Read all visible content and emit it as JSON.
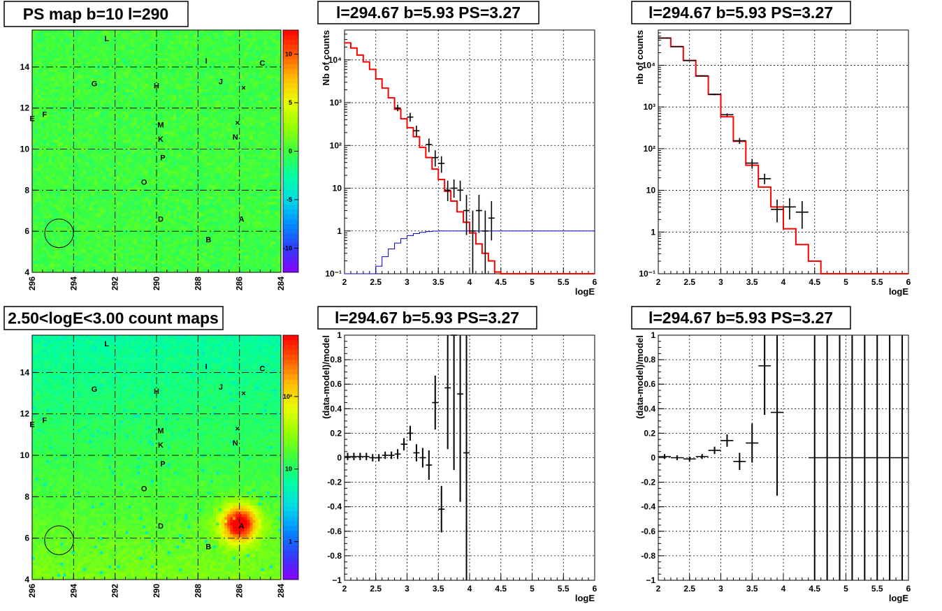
{
  "chart_data": [
    {
      "type": "heatmap",
      "title": "PS map b=10 l=290",
      "x_ticks": [
        "296",
        "294",
        "292",
        "290",
        "288",
        "286",
        "284"
      ],
      "y_ticks": [
        "4",
        "6",
        "8",
        "10",
        "12",
        "14"
      ],
      "x_range": [
        296,
        284
      ],
      "y_range": [
        4,
        15.8
      ],
      "colorbar_ticks": [
        "10",
        "5",
        "0",
        "-5",
        "-10"
      ],
      "colorbar_range": [
        -12.5,
        12.5
      ],
      "background_level": 0,
      "region_circle": {
        "l": 294.7,
        "b": 5.9,
        "r": 0.45
      },
      "sources": [
        {
          "label": "L",
          "l": 292.4,
          "b": 15.4
        },
        {
          "label": "I",
          "l": 287.6,
          "b": 14.3
        },
        {
          "label": "C",
          "l": 284.9,
          "b": 14.2
        },
        {
          "label": "G",
          "l": 293.0,
          "b": 13.2
        },
        {
          "label": "H",
          "l": 290.0,
          "b": 13.1
        },
        {
          "label": "J",
          "l": 286.9,
          "b": 13.3
        },
        {
          "label": "×",
          "l": 285.8,
          "b": 13.0
        },
        {
          "label": "E",
          "l": 296.0,
          "b": 11.5
        },
        {
          "label": "F",
          "l": 295.4,
          "b": 11.7
        },
        {
          "label": "M",
          "l": 289.8,
          "b": 11.2
        },
        {
          "label": "×",
          "l": 286.1,
          "b": 11.3
        },
        {
          "label": "K",
          "l": 289.8,
          "b": 10.5
        },
        {
          "label": "N",
          "l": 286.2,
          "b": 10.6
        },
        {
          "label": "P",
          "l": 289.7,
          "b": 9.6
        },
        {
          "label": "O",
          "l": 290.6,
          "b": 8.4
        },
        {
          "label": "D",
          "l": 289.8,
          "b": 6.6
        },
        {
          "label": "A",
          "l": 285.9,
          "b": 6.6
        },
        {
          "label": "B",
          "l": 287.5,
          "b": 5.6
        }
      ]
    },
    {
      "type": "line",
      "title": "l=294.67 b=5.93 PS=3.27",
      "xlabel": "logE",
      "ylabel": "Nb of counts",
      "xlim": [
        2,
        6
      ],
      "ylim": [
        0.1,
        50000
      ],
      "yscale": "log",
      "x_ticks": [
        "2",
        "2.5",
        "3",
        "3.5",
        "4",
        "4.5",
        "5",
        "5.5",
        "6"
      ],
      "y_ticks": [
        "10⁻¹",
        "1",
        "10",
        "10²",
        "10³",
        "10⁴"
      ],
      "bin_width": 0.1,
      "series": [
        {
          "style": "model-red",
          "bins_x": [
            2.0,
            2.1,
            2.2,
            2.3,
            2.4,
            2.5,
            2.6,
            2.7,
            2.8,
            2.9,
            3.0,
            3.1,
            3.2,
            3.3,
            3.4,
            3.5,
            3.6,
            3.7,
            3.8,
            3.9,
            4.0,
            4.1,
            4.2,
            4.3,
            4.4,
            4.5,
            4.6,
            4.7,
            4.8,
            4.9,
            5.0,
            5.1,
            5.2,
            5.3,
            5.4,
            5.5,
            5.6,
            5.7,
            5.8,
            5.9
          ],
          "values": [
            25000,
            19000,
            13000,
            9000,
            6000,
            3600,
            2200,
            1300,
            700,
            420,
            260,
            160,
            90,
            52,
            28,
            16,
            8.5,
            5,
            2.8,
            1.6,
            0.9,
            0.5,
            0.3,
            0.2,
            0.11,
            0.1,
            0.1,
            0.1,
            0.1,
            0.1,
            0.1,
            0.1,
            0.1,
            0.1,
            0.1,
            0.1,
            0.1,
            0.1,
            0.1,
            0.1
          ]
        },
        {
          "style": "efficiency-blue",
          "bins_x": [
            2.0,
            2.1,
            2.2,
            2.3,
            2.4,
            2.5,
            2.6,
            2.7,
            2.8,
            2.9,
            3.0,
            3.1,
            3.2,
            3.3,
            3.4,
            3.5,
            3.6,
            3.7,
            3.8,
            3.9,
            4.0,
            4.1,
            4.2,
            4.3,
            4.4,
            4.5,
            4.6,
            4.7,
            4.8,
            4.9,
            5.0,
            5.1,
            5.2,
            5.3,
            5.4,
            5.5,
            5.6,
            5.7,
            5.8,
            5.9
          ],
          "values": [
            0.1,
            0.1,
            0.1,
            0.1,
            0.1,
            0.15,
            0.25,
            0.38,
            0.52,
            0.66,
            0.78,
            0.87,
            0.93,
            0.97,
            0.99,
            1,
            1,
            1,
            1,
            1,
            1,
            1,
            1,
            1,
            1,
            1,
            1,
            1,
            1,
            1,
            1,
            1,
            1,
            1,
            1,
            1,
            1,
            1,
            1,
            1
          ]
        },
        {
          "style": "data-points",
          "x": [
            2.85,
            3.05,
            3.15,
            3.35,
            3.45,
            3.55,
            3.65,
            3.75,
            3.85,
            3.95,
            4.05,
            4.15,
            4.25,
            4.35
          ],
          "y": [
            750,
            460,
            220,
            105,
            52,
            38,
            9,
            10,
            9,
            3,
            1,
            3,
            1,
            2
          ],
          "err_lo": [
            120,
            100,
            60,
            35,
            20,
            15,
            4,
            4,
            4,
            2.2,
            0.9,
            2.1,
            0.9,
            1.4
          ],
          "err_hi": [
            150,
            120,
            70,
            40,
            25,
            18,
            6,
            6,
            6,
            4,
            2,
            4,
            2,
            3
          ]
        }
      ]
    },
    {
      "type": "line",
      "title": "l=294.67 b=5.93 PS=3.27",
      "xlabel": "logE",
      "ylabel": "nb of counts",
      "xlim": [
        2,
        6
      ],
      "ylim": [
        0.1,
        70000
      ],
      "yscale": "log",
      "x_ticks": [
        "2",
        "2.5",
        "3",
        "3.5",
        "4",
        "4.5",
        "5",
        "5.5",
        "6"
      ],
      "y_ticks": [
        "10⁻¹",
        "1",
        "10",
        "10²",
        "10³",
        "10⁴"
      ],
      "bin_width": 0.2,
      "series": [
        {
          "style": "model-red",
          "bins_x": [
            2.0,
            2.2,
            2.4,
            2.6,
            2.8,
            3.0,
            3.2,
            3.4,
            3.6,
            3.8,
            4.0,
            4.2,
            4.4,
            4.6,
            4.8,
            5.0,
            5.2,
            5.4,
            5.6,
            5.8
          ],
          "values": [
            45000,
            28000,
            13000,
            5500,
            2000,
            580,
            150,
            40,
            12,
            4,
            1.2,
            0.5,
            0.2,
            0.1,
            0.1,
            0.1,
            0.1,
            0.1,
            0.1,
            0.1
          ]
        },
        {
          "style": "data-points",
          "x": [
            2.1,
            2.3,
            2.5,
            2.7,
            2.9,
            3.1,
            3.3,
            3.5,
            3.7,
            3.9,
            4.1,
            4.3
          ],
          "y": [
            45000,
            28000,
            13000,
            5600,
            2000,
            650,
            155,
            45,
            19,
            3.5,
            4,
            3
          ],
          "err_lo": [
            400,
            300,
            200,
            150,
            90,
            50,
            25,
            12,
            5,
            1.8,
            2,
            1.8
          ],
          "err_hi": [
            400,
            300,
            200,
            150,
            90,
            50,
            25,
            12,
            6,
            2.5,
            2.5,
            2.5
          ]
        }
      ]
    },
    {
      "type": "heatmap",
      "title": "2.50<logE<3.00 count maps",
      "x_ticks": [
        "296",
        "294",
        "292",
        "290",
        "288",
        "286",
        "284"
      ],
      "y_ticks": [
        "4",
        "6",
        "8",
        "10",
        "12",
        "14"
      ],
      "x_range": [
        296,
        284
      ],
      "y_range": [
        4,
        15.8
      ],
      "colorbar_ticks": [
        "10²",
        "10",
        "1"
      ],
      "colorbar_range": [
        0.3,
        700
      ],
      "colorbar_scale": "log",
      "hotspot": {
        "label": "A",
        "l": 286.0,
        "b": 6.7
      },
      "region_circle": {
        "l": 294.7,
        "b": 5.9,
        "r": 0.45
      },
      "sources_same_as_first_map": true
    },
    {
      "type": "scatter",
      "title": "l=294.67 b=5.93 PS=3.27",
      "xlabel": "logE",
      "ylabel": "(data-model)/model",
      "xlim": [
        2,
        6
      ],
      "ylim": [
        -1,
        1
      ],
      "x_ticks": [
        "2",
        "2.5",
        "3",
        "3.5",
        "4",
        "4.5",
        "5",
        "5.5",
        "6"
      ],
      "y_ticks": [
        "1",
        "0.8",
        "0.6",
        "0.4",
        "0.2",
        "0",
        "-0.2",
        "-0.4",
        "-0.6",
        "-0.8",
        "-1"
      ],
      "x_half_width": 0.05,
      "x": [
        2.05,
        2.15,
        2.25,
        2.35,
        2.45,
        2.55,
        2.65,
        2.75,
        2.85,
        2.95,
        3.05,
        3.15,
        3.25,
        3.35,
        3.45,
        3.55,
        3.65,
        3.75,
        3.85,
        3.95
      ],
      "y": [
        0.01,
        0.01,
        0.01,
        0.01,
        0.0,
        0.0,
        0.02,
        0.02,
        0.03,
        0.11,
        0.2,
        0.04,
        0.0,
        -0.06,
        0.45,
        -0.42,
        0.57,
        1.1,
        0.52,
        0.04
      ],
      "err": [
        0.03,
        0.03,
        0.03,
        0.03,
        0.03,
        0.03,
        0.03,
        0.03,
        0.04,
        0.05,
        0.06,
        0.07,
        0.08,
        0.12,
        0.22,
        0.19,
        0.5,
        1.2,
        0.88,
        1.1
      ]
    },
    {
      "type": "scatter",
      "title": "l=294.67 b=5.93 PS=3.27",
      "xlabel": "logE",
      "ylabel": "(data-model)/model",
      "xlim": [
        2,
        6
      ],
      "ylim": [
        -1,
        1
      ],
      "x_ticks": [
        "2",
        "2.5",
        "3",
        "3.5",
        "4",
        "4.5",
        "5",
        "5.5",
        "6"
      ],
      "y_ticks": [
        "1",
        "0.8",
        "0.6",
        "0.4",
        "0.2",
        "0",
        "-0.2",
        "-0.4",
        "-0.6",
        "-0.8",
        "-1"
      ],
      "x_half_width": 0.1,
      "x": [
        2.1,
        2.3,
        2.5,
        2.7,
        2.9,
        3.1,
        3.3,
        3.5,
        3.7,
        3.9,
        4.5,
        4.7,
        4.9,
        5.1,
        5.3,
        5.5,
        5.7,
        5.9
      ],
      "y": [
        0.01,
        0.0,
        -0.01,
        0.01,
        0.06,
        0.14,
        -0.03,
        0.12,
        0.75,
        0.37,
        0,
        0,
        0,
        0,
        0,
        0,
        0,
        0
      ],
      "err": [
        0.02,
        0.02,
        0.02,
        0.02,
        0.03,
        0.05,
        0.07,
        0.16,
        0.4,
        0.68,
        5,
        5,
        5,
        5,
        5,
        5,
        5,
        5
      ]
    }
  ]
}
